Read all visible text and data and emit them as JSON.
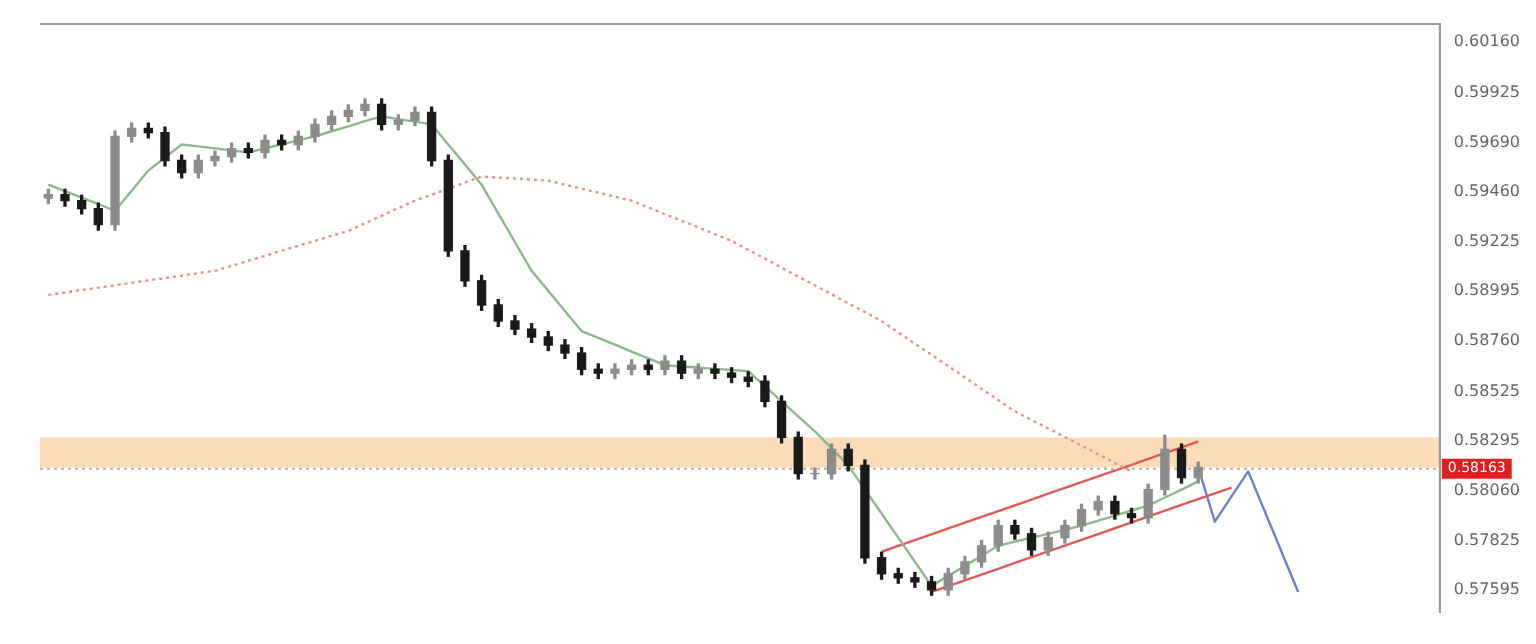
{
  "chart_data": {
    "type": "candlestick",
    "colors": [
      "#8c8c8c",
      "#1a1a1a",
      "#1a1a1a",
      "#1a1a1a",
      "#8c8c8c",
      "#8c8c8c",
      "#1a1a1a",
      "#1a1a1a",
      "#1a1a1a",
      "#8c8c8c",
      "#8c8c8c",
      "#8c8c8c",
      "#1a1a1a",
      "#8c8c8c",
      "#1a1a1a",
      "#8c8c8c",
      "#8c8c8c",
      "#8c8c8c",
      "#8c8c8c",
      "#8c8c8c",
      "#1a1a1a",
      "#8c8c8c",
      "#8c8c8c",
      "#1a1a1a",
      "#1a1a1a",
      "#1a1a1a",
      "#1a1a1a",
      "#1a1a1a",
      "#1a1a1a",
      "#1a1a1a",
      "#1a1a1a",
      "#1a1a1a",
      "#1a1a1a",
      "#1a1a1a",
      "#8c8c8c",
      "#8c8c8c",
      "#1a1a1a",
      "#8c8c8c",
      "#1a1a1a",
      "#8c8c8c",
      "#1a1a1a",
      "#1a1a1a",
      "#1a1a1a",
      "#1a1a1a",
      "#1a1a1a",
      "#1a1a1a",
      "#8c8c8c",
      "#8c8c8c",
      "#1a1a1a",
      "#1a1a1a",
      "#1a1a1a",
      "#1a1a1a",
      "#1a1a1a",
      "#1a1a1a",
      "#8c8c8c",
      "#8c8c8c",
      "#8c8c8c",
      "#8c8c8c",
      "#1a1a1a",
      "#1a1a1a",
      "#8c8c8c",
      "#8c8c8c",
      "#8c8c8c",
      "#8c8c8c",
      "#1a1a1a",
      "#1a1a1a",
      "#8c8c8c",
      "#8c8c8c",
      "#1a1a1a",
      "#8c8c8c",
      null,
      null,
      null,
      null,
      null,
      null,
      null,
      null,
      null,
      null,
      null,
      null,
      null,
      null
    ],
    "categories": [
      null,
      null,
      null,
      null,
      null,
      null,
      null,
      null,
      null,
      null,
      null,
      null,
      null,
      null,
      null,
      null,
      null,
      null,
      null,
      null,
      null,
      null,
      null,
      null,
      null,
      null,
      null,
      null,
      null,
      null,
      null,
      null,
      null,
      null,
      null,
      null,
      null,
      null,
      null,
      null,
      null,
      null,
      null,
      null,
      null,
      null,
      null,
      null,
      null,
      null,
      null,
      null,
      null,
      null,
      null,
      null,
      null,
      null,
      null,
      null,
      null,
      null,
      null,
      null,
      null,
      null,
      null,
      null,
      null,
      null,
      null,
      null,
      null,
      null,
      null,
      null,
      null,
      null,
      null,
      null,
      null,
      null,
      null,
      null
    ],
    "ohlc": [
      [
        0.5943,
        0.59471,
        0.59405,
        0.59446
      ],
      [
        0.59446,
        0.59471,
        0.59393,
        0.59418
      ],
      [
        0.59418,
        0.59443,
        0.59356,
        0.59381
      ],
      [
        0.59381,
        0.59406,
        0.59281,
        0.59306
      ],
      [
        0.59306,
        0.59744,
        0.59281,
        0.59719
      ],
      [
        0.59719,
        0.59781,
        0.59694,
        0.59756
      ],
      [
        0.59756,
        0.59781,
        0.59712,
        0.59737
      ],
      [
        0.59737,
        0.59762,
        0.59581,
        0.59606
      ],
      [
        0.59606,
        0.59631,
        0.59525,
        0.5955
      ],
      [
        0.5955,
        0.59631,
        0.59525,
        0.59606
      ],
      [
        0.59606,
        0.5965,
        0.59581,
        0.59625
      ],
      [
        0.59625,
        0.59687,
        0.596,
        0.59662
      ],
      [
        0.59662,
        0.59687,
        0.59619,
        0.59644
      ],
      [
        0.59644,
        0.59725,
        0.59619,
        0.597
      ],
      [
        0.597,
        0.59725,
        0.59656,
        0.59681
      ],
      [
        0.59681,
        0.59744,
        0.59656,
        0.59719
      ],
      [
        0.59719,
        0.598,
        0.59694,
        0.59775
      ],
      [
        0.59775,
        0.59838,
        0.5975,
        0.59813
      ],
      [
        0.59813,
        0.59866,
        0.59788,
        0.59841
      ],
      [
        0.59841,
        0.59894,
        0.59816,
        0.59869
      ],
      [
        0.59869,
        0.59894,
        0.5975,
        0.59775
      ],
      [
        0.59775,
        0.59819,
        0.5975,
        0.59794
      ],
      [
        0.59794,
        0.59856,
        0.59769,
        0.59831
      ],
      [
        0.59831,
        0.59856,
        0.59581,
        0.59606
      ],
      [
        0.59606,
        0.59631,
        0.59158,
        0.59183
      ],
      [
        0.59183,
        0.59208,
        0.59018,
        0.59043
      ],
      [
        0.59043,
        0.59068,
        0.58905,
        0.5893
      ],
      [
        0.5893,
        0.58955,
        0.5883,
        0.58855
      ],
      [
        0.58855,
        0.5888,
        0.58792,
        0.58817
      ],
      [
        0.58817,
        0.58842,
        0.58755,
        0.5878
      ],
      [
        0.5878,
        0.58805,
        0.58717,
        0.58742
      ],
      [
        0.58742,
        0.58767,
        0.5868,
        0.58705
      ],
      [
        0.58705,
        0.5873,
        0.58604,
        0.58629
      ],
      [
        0.58629,
        0.58654,
        0.58586,
        0.58611
      ],
      [
        0.58611,
        0.58654,
        0.58586,
        0.58629
      ],
      [
        0.58629,
        0.58673,
        0.58604,
        0.58648
      ],
      [
        0.58648,
        0.58673,
        0.58604,
        0.58629
      ],
      [
        0.58629,
        0.58692,
        0.58604,
        0.58667
      ],
      [
        0.58667,
        0.58692,
        0.58586,
        0.58611
      ],
      [
        0.58611,
        0.58654,
        0.58586,
        0.58629
      ],
      [
        0.58629,
        0.58654,
        0.58586,
        0.58611
      ],
      [
        0.58611,
        0.58636,
        0.58567,
        0.58592
      ],
      [
        0.58592,
        0.58617,
        0.58548,
        0.58573
      ],
      [
        0.58573,
        0.58598,
        0.58454,
        0.58479
      ],
      [
        0.58479,
        0.58504,
        0.58285,
        0.5831
      ],
      [
        0.5831,
        0.58335,
        0.58116,
        0.58141
      ],
      [
        0.58141,
        0.58166,
        0.58116,
        0.58141
      ],
      [
        0.58141,
        0.58279,
        0.58116,
        0.58254
      ],
      [
        0.58254,
        0.58279,
        0.58154,
        0.58179
      ],
      [
        0.58179,
        0.58204,
        0.57722,
        0.57747
      ],
      [
        0.57747,
        0.57772,
        0.57647,
        0.57672
      ],
      [
        0.57672,
        0.57697,
        0.57628,
        0.57653
      ],
      [
        0.57653,
        0.57678,
        0.57609,
        0.57634
      ],
      [
        0.57634,
        0.57659,
        0.57572,
        0.57597
      ],
      [
        0.57597,
        0.57697,
        0.57572,
        0.57672
      ],
      [
        0.57672,
        0.57753,
        0.57647,
        0.57728
      ],
      [
        0.57728,
        0.57828,
        0.57703,
        0.57803
      ],
      [
        0.57803,
        0.57922,
        0.57778,
        0.57897
      ],
      [
        0.57897,
        0.57922,
        0.57834,
        0.57859
      ],
      [
        0.57859,
        0.57884,
        0.57759,
        0.57784
      ],
      [
        0.57784,
        0.57866,
        0.57759,
        0.57841
      ],
      [
        0.57841,
        0.57922,
        0.57816,
        0.57897
      ],
      [
        0.57897,
        0.57997,
        0.57872,
        0.57972
      ],
      [
        0.57972,
        0.58035,
        0.57947,
        0.5801
      ],
      [
        0.5801,
        0.58035,
        0.57928,
        0.57953
      ],
      [
        0.57953,
        0.57978,
        0.5791,
        0.57935
      ],
      [
        0.57935,
        0.58091,
        0.5791,
        0.58066
      ],
      [
        0.58066,
        0.5832,
        0.58041,
        0.58254
      ],
      [
        0.58254,
        0.58279,
        0.58097,
        0.58122
      ],
      [
        0.58122,
        0.58194,
        0.58097,
        0.58169
      ],
      null,
      null,
      null,
      null,
      null,
      null,
      null,
      null,
      null,
      null,
      null,
      null,
      null,
      null
    ],
    "series": [
      {
        "type": "line",
        "color": "#e89090",
        "line_style": "dotted",
        "values": [
          0.58977,
          0.58988,
          0.59,
          0.59011,
          0.59022,
          0.59034,
          0.59045,
          0.59056,
          0.59067,
          0.59079,
          0.5909,
          0.59113,
          0.59137,
          0.5916,
          0.59184,
          0.59207,
          0.5923,
          0.59254,
          0.59277,
          0.59312,
          0.59347,
          0.59383,
          0.59418,
          0.59446,
          0.59474,
          0.59503,
          0.59531,
          0.59526,
          0.59522,
          0.59517,
          0.59512,
          0.59493,
          0.59474,
          0.59456,
          0.59437,
          0.59418,
          0.59387,
          0.59355,
          0.59324,
          0.59293,
          0.59261,
          0.5923,
          0.59188,
          0.59147,
          0.59105,
          0.59063,
          0.59022,
          0.5898,
          0.58938,
          0.58897,
          0.58855,
          0.58802,
          0.58749,
          0.58697,
          0.58644,
          0.58591,
          0.58538,
          0.58485,
          0.58432,
          0.58392,
          0.58352,
          0.58312,
          0.58272,
          0.58231,
          0.58191,
          0.58151,
          null,
          null,
          null,
          null,
          null,
          null,
          null,
          null,
          null,
          null,
          null,
          null,
          null,
          null,
          null,
          null,
          null,
          null
        ]
      },
      {
        "type": "line",
        "color": "#8fb88f",
        "line_style": "solid",
        "values": [
          0.59493,
          0.59463,
          0.59432,
          0.59402,
          0.59371,
          0.59465,
          0.59559,
          0.5962,
          0.59681,
          0.59672,
          0.59663,
          0.59653,
          0.59644,
          0.59663,
          0.59682,
          0.597,
          0.59719,
          0.59743,
          0.59766,
          0.5979,
          0.59813,
          0.598,
          0.59788,
          0.59775,
          0.59681,
          0.59587,
          0.59493,
          0.59359,
          0.59224,
          0.5909,
          0.58996,
          0.58902,
          0.58808,
          0.58776,
          0.58744,
          0.58712,
          0.5868,
          0.58648,
          0.58642,
          0.58637,
          0.58631,
          0.58626,
          0.5862,
          0.5855,
          0.58479,
          0.58409,
          0.58338,
          0.58259,
          0.58179,
          0.58066,
          0.57954,
          0.57841,
          0.57728,
          0.57615,
          0.57662,
          0.57709,
          0.57756,
          0.57803,
          0.57822,
          0.57841,
          0.57859,
          0.57878,
          0.57897,
          0.57921,
          0.57944,
          0.57968,
          0.57991,
          0.58029,
          0.58066,
          0.58104,
          null,
          null,
          null,
          null,
          null,
          null,
          null,
          null,
          null,
          null,
          null,
          null,
          null,
          null
        ]
      },
      {
        "type": "line",
        "color": "#e05a5a",
        "line_style": "solid",
        "values": [
          null,
          null,
          null,
          null,
          null,
          null,
          null,
          null,
          null,
          null,
          null,
          null,
          null,
          null,
          null,
          null,
          null,
          null,
          null,
          null,
          null,
          null,
          null,
          null,
          null,
          null,
          null,
          null,
          null,
          null,
          null,
          null,
          null,
          null,
          null,
          null,
          null,
          null,
          null,
          null,
          null,
          null,
          null,
          null,
          null,
          null,
          null,
          null,
          null,
          null,
          0.57775,
          0.57802,
          0.57829,
          0.57856,
          0.57884,
          0.57911,
          0.57938,
          0.57965,
          0.57992,
          0.58019,
          0.58047,
          0.58074,
          0.58101,
          0.58128,
          0.58155,
          0.58182,
          0.5821,
          0.58237,
          0.58264,
          0.58291,
          null,
          null,
          null,
          null,
          null,
          null,
          null,
          null,
          null,
          null,
          null,
          null,
          null,
          null
        ]
      },
      {
        "type": "line",
        "color": "#e05a5a",
        "line_style": "solid",
        "values": [
          null,
          null,
          null,
          null,
          null,
          null,
          null,
          null,
          null,
          null,
          null,
          null,
          null,
          null,
          null,
          null,
          null,
          null,
          null,
          null,
          null,
          null,
          null,
          null,
          null,
          null,
          null,
          null,
          null,
          null,
          null,
          null,
          null,
          null,
          null,
          null,
          null,
          null,
          null,
          null,
          null,
          null,
          null,
          null,
          null,
          null,
          null,
          null,
          null,
          null,
          null,
          null,
          null,
          0.57587,
          0.57614,
          0.57641,
          0.57668,
          0.57695,
          0.57723,
          0.5775,
          0.57777,
          0.57804,
          0.57831,
          0.57858,
          0.57885,
          0.57912,
          0.57939,
          0.57967,
          0.57994,
          0.58021,
          0.58048,
          0.58075,
          null,
          null,
          null,
          null,
          null,
          null,
          null,
          null,
          null,
          null,
          null,
          null
        ]
      },
      {
        "type": "line",
        "color": "#6f82c8",
        "line_style": "solid",
        "values": [
          null,
          null,
          null,
          null,
          null,
          null,
          null,
          null,
          null,
          null,
          null,
          null,
          null,
          null,
          null,
          null,
          null,
          null,
          null,
          null,
          null,
          null,
          null,
          null,
          null,
          null,
          null,
          null,
          null,
          null,
          null,
          null,
          null,
          null,
          null,
          null,
          null,
          null,
          null,
          null,
          null,
          null,
          null,
          null,
          null,
          null,
          null,
          null,
          null,
          null,
          null,
          null,
          null,
          null,
          null,
          null,
          null,
          null,
          null,
          null,
          null,
          null,
          null,
          null,
          null,
          null,
          null,
          null,
          null,
          0.58169,
          0.57916,
          0.58034,
          0.58151,
          0.57963,
          0.57775,
          0.57587,
          null,
          null,
          null,
          null,
          null,
          null,
          null,
          null
        ]
      }
    ],
    "bands": [
      {
        "axis": "y",
        "from": 0.58169,
        "to": 0.5831,
        "color": "#fbd3a6"
      }
    ],
    "ref_lines": [
      {
        "axis": "y",
        "value": 0.58163,
        "label": "0.58163",
        "color": "#b0b0b0",
        "line_style": "dotted"
      }
    ],
    "ylim": [
      0.57493,
      0.60245
    ],
    "yticks": [
      {
        "value": 0.6016,
        "label": "0.60160"
      },
      {
        "value": 0.59925,
        "label": "0.59925"
      },
      {
        "value": 0.5969,
        "label": "0.59690"
      },
      {
        "value": 0.5946,
        "label": "0.59460"
      },
      {
        "value": 0.59225,
        "label": "0.59225"
      },
      {
        "value": 0.58995,
        "label": "0.58995"
      },
      {
        "value": 0.5876,
        "label": "0.58760"
      },
      {
        "value": 0.58525,
        "label": "0.58525"
      },
      {
        "value": 0.58295,
        "label": "0.58295"
      },
      {
        "value": 0.5806,
        "label": "0.58060"
      },
      {
        "value": 0.57825,
        "label": "0.57825"
      },
      {
        "value": 0.57595,
        "label": "0.57595"
      }
    ],
    "tick_labels": "y",
    "grid": false,
    "legend": false
  }
}
